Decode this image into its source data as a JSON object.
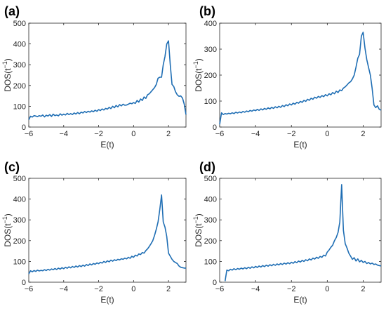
{
  "figure": {
    "line_color": "#1f6eb4"
  },
  "chart_data": [
    {
      "type": "line",
      "panel_label": "(a)",
      "xlabel": "E(t)",
      "ylabel_main": "DOS(t",
      "ylabel_sup": "-1",
      "ylabel_close": ")",
      "xlim": [
        -6,
        3
      ],
      "ylim": [
        0,
        500
      ],
      "xticks": [
        -6,
        -4,
        -2,
        0,
        2
      ],
      "yticks": [
        0,
        100,
        200,
        300,
        400,
        500
      ],
      "series": [
        {
          "x": [
            -6,
            -5.9,
            -5.8,
            -5.7,
            -5.6,
            -5.5,
            -5.4,
            -5.3,
            -5.2,
            -5.1,
            -5,
            -4.9,
            -4.8,
            -4.7,
            -4.6,
            -4.5,
            -4.4,
            -4.3,
            -4.2,
            -4.1,
            -4,
            -3.9,
            -3.8,
            -3.7,
            -3.6,
            -3.5,
            -3.4,
            -3.3,
            -3.2,
            -3.1,
            -3,
            -2.9,
            -2.8,
            -2.7,
            -2.6,
            -2.5,
            -2.4,
            -2.3,
            -2.2,
            -2.1,
            -2,
            -1.9,
            -1.8,
            -1.7,
            -1.6,
            -1.5,
            -1.4,
            -1.3,
            -1.2,
            -1.1,
            -1,
            -0.9,
            -0.8,
            -0.7,
            -0.6,
            -0.5,
            -0.4,
            -0.3,
            -0.2,
            -0.1,
            0,
            0.1,
            0.2,
            0.3,
            0.4,
            0.5,
            0.6,
            0.7,
            0.8,
            0.9,
            1,
            1.1,
            1.2,
            1.3,
            1.4,
            1.5,
            1.6,
            1.7,
            1.8,
            1.9,
            2,
            2.1,
            2.2,
            2.3,
            2.4,
            2.5,
            2.6,
            2.7,
            2.8,
            2.9,
            3
          ],
          "y": [
            35,
            52,
            48,
            55,
            53,
            50,
            55,
            52,
            58,
            49,
            57,
            53,
            60,
            51,
            62,
            55,
            58,
            54,
            64,
            57,
            62,
            58,
            66,
            60,
            65,
            60,
            68,
            63,
            70,
            64,
            72,
            68,
            75,
            70,
            76,
            72,
            78,
            74,
            81,
            76,
            84,
            79,
            87,
            82,
            90,
            86,
            95,
            89,
            100,
            93,
            104,
            97,
            108,
            102,
            110,
            105,
            106,
            110,
            115,
            112,
            118,
            114,
            128,
            120,
            135,
            128,
            145,
            138,
            155,
            160,
            170,
            180,
            190,
            205,
            235,
            240,
            240,
            300,
            340,
            400,
            415,
            300,
            205,
            195,
            170,
            155,
            148,
            150,
            140,
            110,
            60
          ]
        }
      ]
    },
    {
      "type": "line",
      "panel_label": "(b)",
      "xlabel": "E(t)",
      "ylabel_main": "DOS(t",
      "ylabel_sup": "-1",
      "ylabel_close": ")",
      "xlim": [
        -6,
        3
      ],
      "ylim": [
        0,
        400
      ],
      "xticks": [
        -6,
        -4,
        -2,
        0,
        2
      ],
      "yticks": [
        0,
        100,
        200,
        300,
        400
      ],
      "series": [
        {
          "x": [
            -6,
            -5.9,
            -5.8,
            -5.7,
            -5.6,
            -5.5,
            -5.4,
            -5.3,
            -5.2,
            -5.1,
            -5,
            -4.9,
            -4.8,
            -4.7,
            -4.6,
            -4.5,
            -4.4,
            -4.3,
            -4.2,
            -4.1,
            -4,
            -3.9,
            -3.8,
            -3.7,
            -3.6,
            -3.5,
            -3.4,
            -3.3,
            -3.2,
            -3.1,
            -3,
            -2.9,
            -2.8,
            -2.7,
            -2.6,
            -2.5,
            -2.4,
            -2.3,
            -2.2,
            -2.1,
            -2,
            -1.9,
            -1.8,
            -1.7,
            -1.6,
            -1.5,
            -1.4,
            -1.3,
            -1.2,
            -1.1,
            -1,
            -0.9,
            -0.8,
            -0.7,
            -0.6,
            -0.5,
            -0.4,
            -0.3,
            -0.2,
            -0.1,
            0,
            0.1,
            0.2,
            0.3,
            0.4,
            0.5,
            0.6,
            0.7,
            0.8,
            0.9,
            1,
            1.1,
            1.2,
            1.3,
            1.4,
            1.5,
            1.6,
            1.7,
            1.8,
            1.9,
            2,
            2.1,
            2.2,
            2.3,
            2.4,
            2.5,
            2.6,
            2.7,
            2.8,
            2.9,
            3
          ],
          "y": [
            10,
            55,
            48,
            52,
            50,
            53,
            51,
            55,
            52,
            57,
            54,
            58,
            55,
            60,
            57,
            62,
            59,
            64,
            61,
            66,
            63,
            68,
            64,
            70,
            66,
            72,
            68,
            74,
            70,
            76,
            72,
            78,
            74,
            80,
            76,
            83,
            79,
            86,
            82,
            89,
            85,
            92,
            88,
            95,
            92,
            99,
            95,
            103,
            99,
            107,
            103,
            111,
            107,
            115,
            111,
            118,
            114,
            121,
            117,
            125,
            120,
            128,
            124,
            133,
            128,
            138,
            133,
            143,
            140,
            150,
            155,
            162,
            170,
            175,
            185,
            200,
            230,
            265,
            280,
            350,
            365,
            305,
            260,
            230,
            200,
            150,
            85,
            75,
            82,
            68,
            65
          ]
        }
      ]
    },
    {
      "type": "line",
      "panel_label": "(c)",
      "xlabel": "E(t)",
      "ylabel_main": "DOS(t",
      "ylabel_sup": "-1",
      "ylabel_close": ")",
      "xlim": [
        -6,
        3
      ],
      "ylim": [
        0,
        500
      ],
      "xticks": [
        -6,
        -4,
        -2,
        0,
        2
      ],
      "yticks": [
        0,
        100,
        200,
        300,
        400,
        500
      ],
      "series": [
        {
          "x": [
            -6,
            -5.9,
            -5.8,
            -5.7,
            -5.6,
            -5.5,
            -5.4,
            -5.3,
            -5.2,
            -5.1,
            -5,
            -4.9,
            -4.8,
            -4.7,
            -4.6,
            -4.5,
            -4.4,
            -4.3,
            -4.2,
            -4.1,
            -4,
            -3.9,
            -3.8,
            -3.7,
            -3.6,
            -3.5,
            -3.4,
            -3.3,
            -3.2,
            -3.1,
            -3,
            -2.9,
            -2.8,
            -2.7,
            -2.6,
            -2.5,
            -2.4,
            -2.3,
            -2.2,
            -2.1,
            -2,
            -1.9,
            -1.8,
            -1.7,
            -1.6,
            -1.5,
            -1.4,
            -1.3,
            -1.2,
            -1.1,
            -1,
            -0.9,
            -0.8,
            -0.7,
            -0.6,
            -0.5,
            -0.4,
            -0.3,
            -0.2,
            -0.1,
            0,
            0.1,
            0.2,
            0.3,
            0.4,
            0.5,
            0.6,
            0.7,
            0.8,
            0.9,
            1,
            1.1,
            1.2,
            1.3,
            1.4,
            1.5,
            1.6,
            1.7,
            1.8,
            1.9,
            2,
            2.1,
            2.2,
            2.3,
            2.4,
            2.5,
            2.6,
            2.7,
            2.8,
            2.9,
            3
          ],
          "y": [
            40,
            55,
            50,
            56,
            52,
            58,
            54,
            57,
            55,
            60,
            56,
            62,
            58,
            64,
            60,
            66,
            61,
            68,
            63,
            70,
            65,
            72,
            67,
            74,
            69,
            76,
            71,
            78,
            73,
            80,
            75,
            82,
            77,
            85,
            80,
            88,
            83,
            90,
            86,
            93,
            89,
            96,
            92,
            100,
            95,
            103,
            98,
            106,
            101,
            108,
            104,
            110,
            107,
            113,
            110,
            116,
            112,
            120,
            115,
            125,
            120,
            130,
            126,
            136,
            133,
            143,
            140,
            152,
            160,
            172,
            185,
            200,
            225,
            255,
            290,
            350,
            420,
            290,
            265,
            220,
            140,
            125,
            110,
            100,
            95,
            90,
            78,
            72,
            70,
            68,
            68
          ]
        }
      ]
    },
    {
      "type": "line",
      "panel_label": "(d)",
      "xlabel": "E(t)",
      "ylabel_main": "DOS(t",
      "ylabel_sup": "-1",
      "ylabel_close": ")",
      "xlim": [
        -6,
        3
      ],
      "ylim": [
        0,
        500
      ],
      "xticks": [
        -6,
        -4,
        -2,
        0,
        2
      ],
      "yticks": [
        0,
        100,
        200,
        300,
        400,
        500
      ],
      "series": [
        {
          "x": [
            -5.7,
            -5.6,
            -5.5,
            -5.4,
            -5.3,
            -5.2,
            -5.1,
            -5,
            -4.9,
            -4.8,
            -4.7,
            -4.6,
            -4.5,
            -4.4,
            -4.3,
            -4.2,
            -4.1,
            -4,
            -3.9,
            -3.8,
            -3.7,
            -3.6,
            -3.5,
            -3.4,
            -3.3,
            -3.2,
            -3.1,
            -3,
            -2.9,
            -2.8,
            -2.7,
            -2.6,
            -2.5,
            -2.4,
            -2.3,
            -2.2,
            -2.1,
            -2,
            -1.9,
            -1.8,
            -1.7,
            -1.6,
            -1.5,
            -1.4,
            -1.3,
            -1.2,
            -1.1,
            -1,
            -0.9,
            -0.8,
            -0.7,
            -0.6,
            -0.5,
            -0.4,
            -0.3,
            -0.2,
            -0.1,
            0,
            0.1,
            0.2,
            0.3,
            0.4,
            0.5,
            0.6,
            0.7,
            0.8,
            0.9,
            1,
            1.1,
            1.2,
            1.3,
            1.4,
            1.5,
            1.6,
            1.7,
            1.8,
            1.9,
            2,
            2.1,
            2.2,
            2.3,
            2.4,
            2.5,
            2.6,
            2.7,
            2.8,
            2.9,
            3
          ],
          "y": [
            5,
            58,
            55,
            62,
            58,
            65,
            60,
            66,
            62,
            68,
            64,
            70,
            65,
            72,
            67,
            74,
            69,
            76,
            71,
            78,
            73,
            80,
            75,
            82,
            77,
            84,
            79,
            86,
            81,
            88,
            83,
            90,
            85,
            92,
            87,
            94,
            89,
            96,
            91,
            99,
            94,
            102,
            97,
            105,
            100,
            108,
            103,
            112,
            107,
            116,
            111,
            120,
            115,
            124,
            120,
            130,
            126,
            145,
            155,
            168,
            178,
            200,
            215,
            240,
            290,
            470,
            250,
            185,
            165,
            140,
            125,
            110,
            118,
            102,
            112,
            98,
            105,
            95,
            100,
            90,
            95,
            88,
            92,
            85,
            88,
            82,
            80,
            78
          ]
        }
      ]
    }
  ]
}
